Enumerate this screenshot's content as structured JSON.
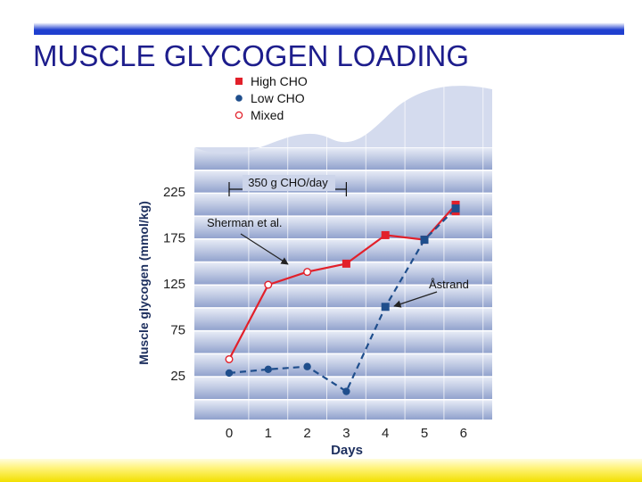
{
  "slide": {
    "title": "MUSCLE GLYCOGEN LOADING",
    "colors": {
      "title": "#1d1d8c",
      "top_bar": "#1f3fcf",
      "bottom_bar": "#f2e000"
    }
  },
  "chart_data": {
    "type": "line",
    "ylabel": "Muscle glycogen (mmol/kg)",
    "xlabel": "Days",
    "x_ticks": [
      0,
      1,
      2,
      3,
      4,
      5,
      6
    ],
    "y_ticks": [
      25,
      75,
      125,
      175,
      225
    ],
    "xlim": [
      -0.5,
      6.7
    ],
    "ylim": [
      0,
      255
    ],
    "grid": "horizontal bands",
    "legend": {
      "placement": "top-left",
      "entries": [
        {
          "label": "High CHO",
          "marker": "filled-square",
          "color": "#e2202a"
        },
        {
          "label": "Low CHO",
          "marker": "filled-circle",
          "color": "#1f4e8c"
        },
        {
          "label": "Mixed",
          "marker": "open-circle",
          "color": "#e2202a"
        }
      ]
    },
    "series": [
      {
        "name": "High CHO",
        "line_style": "solid",
        "color": "#e2202a",
        "points": [
          {
            "x": 0,
            "y": 42,
            "marker": "open-circle"
          },
          {
            "x": 1,
            "y": 123,
            "marker": "open-circle"
          },
          {
            "x": 2,
            "y": 137,
            "marker": "open-circle"
          },
          {
            "x": 3,
            "y": 146,
            "marker": "filled-square"
          },
          {
            "x": 4,
            "y": 177,
            "marker": "filled-square"
          },
          {
            "x": 5,
            "y": 172,
            "marker": "filled-square"
          },
          {
            "x": 5.8,
            "y": 203,
            "marker": "filled-square"
          },
          {
            "x": 5.8,
            "y": 210,
            "marker": "filled-square"
          }
        ]
      },
      {
        "name": "Low CHO",
        "line_style": "dashed",
        "color": "#1f4e8c",
        "points": [
          {
            "x": 0,
            "y": 27,
            "marker": "filled-circle"
          },
          {
            "x": 1,
            "y": 31,
            "marker": "filled-circle"
          },
          {
            "x": 2,
            "y": 34,
            "marker": "filled-circle"
          },
          {
            "x": 3,
            "y": 7,
            "marker": "filled-circle"
          },
          {
            "x": 4,
            "y": 99,
            "marker": "filled-square"
          },
          {
            "x": 5,
            "y": 172,
            "marker": "filled-square"
          },
          {
            "x": 5.8,
            "y": 206,
            "marker": "filled-square"
          }
        ]
      }
    ],
    "annotations": [
      {
        "text": "350 g CHO/day",
        "type": "bracket",
        "x_start": 0,
        "x_end": 3,
        "y": 228
      },
      {
        "text": "Sherman et al.",
        "type": "arrow",
        "target_series": "High CHO",
        "target_x": 1.5,
        "target_y": 130
      },
      {
        "text": "Åstrand",
        "type": "arrow",
        "target_series": "Low CHO",
        "target_x": 4.2,
        "target_y": 100
      }
    ]
  }
}
